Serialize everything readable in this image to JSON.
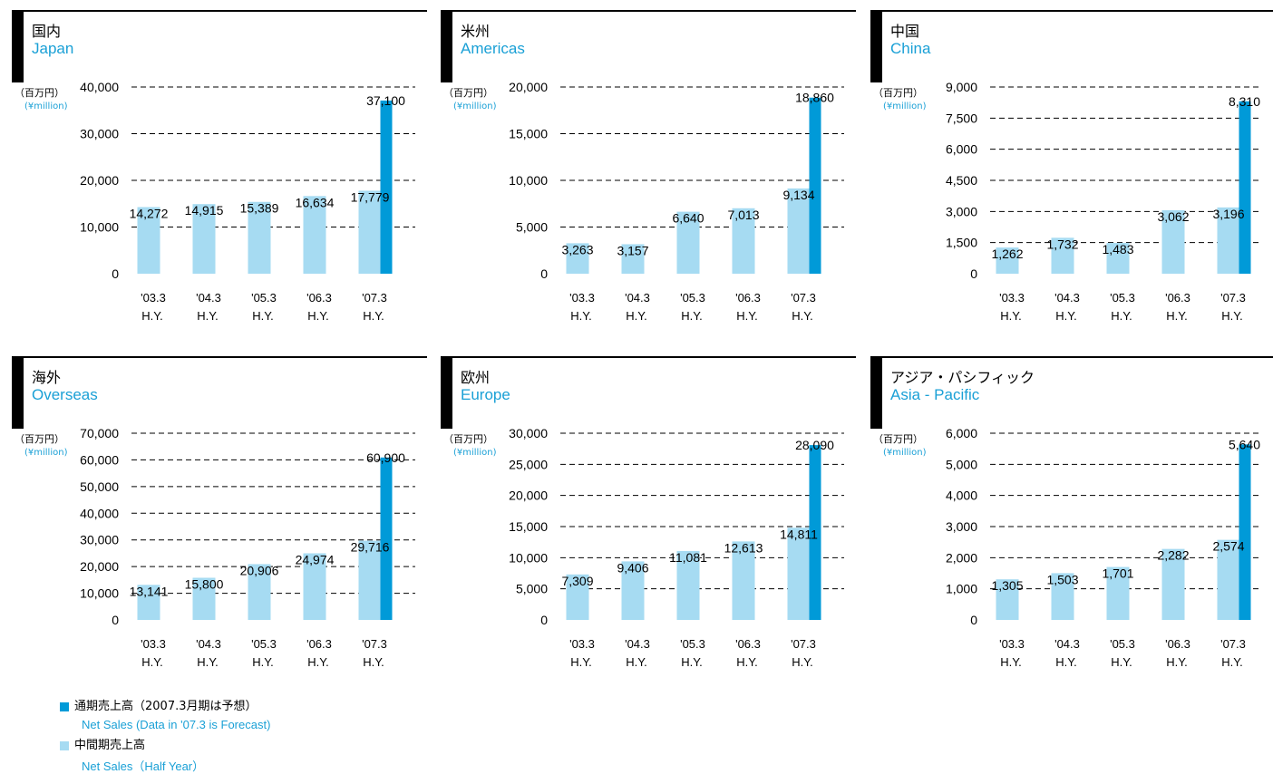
{
  "colors": {
    "full_year": "#009ad8",
    "half_year": "#a6dbf2",
    "english_text": "#1aa0d6",
    "grid": "#000000"
  },
  "unit": {
    "jp": "（百万円）",
    "en": "(¥million)"
  },
  "categories": [
    [
      "'03.3",
      "H.Y."
    ],
    [
      "'04.3",
      "H.Y."
    ],
    [
      "'05.3",
      "H.Y."
    ],
    [
      "'06.3",
      "H.Y."
    ],
    [
      "'07.3",
      "H.Y."
    ]
  ],
  "legend": {
    "full_year_jp": "通期売上高（2007.3月期は予想）",
    "full_year_en": "Net Sales (Data in '07.3 is Forecast)",
    "half_year_jp": "中間期売上高",
    "half_year_en": "Net Sales（Half Year）"
  },
  "panels": [
    {
      "title_jp": "国内",
      "title_en": "Japan"
    },
    {
      "title_jp": "米州",
      "title_en": "Americas"
    },
    {
      "title_jp": "中国",
      "title_en": "China"
    },
    {
      "title_jp": "海外",
      "title_en": "Overseas"
    },
    {
      "title_jp": "欧州",
      "title_en": "Europe"
    },
    {
      "title_jp": "アジア・パシフィック",
      "title_en": "Asia - Pacific"
    }
  ],
  "chart_data": [
    {
      "type": "bar",
      "title": "国内 Japan",
      "ylabel": "(百万円) (¥million)",
      "categories": [
        "'03.3 H.Y.",
        "'04.3 H.Y.",
        "'05.3 H.Y.",
        "'06.3 H.Y.",
        "'07.3 H.Y."
      ],
      "ylim": [
        0,
        40000
      ],
      "yticks": [
        0,
        10000,
        20000,
        30000,
        40000
      ],
      "ytick_labels": [
        "0",
        "10,000",
        "20,000",
        "30,000",
        "40,000"
      ],
      "series": [
        {
          "name": "中間期売上高 Net Sales（Half Year）",
          "values": [
            14272,
            14915,
            15389,
            16634,
            17779
          ],
          "labels": [
            "14,272",
            "14,915",
            "15,389",
            "16,634",
            "17,779"
          ]
        },
        {
          "name": "通期売上高（2007.3月期は予想） Net Sales (Data in '07.3 is Forecast)",
          "values": [
            null,
            null,
            null,
            null,
            37100
          ],
          "labels": [
            "",
            "",
            "",
            "",
            "37,100"
          ]
        }
      ]
    },
    {
      "type": "bar",
      "title": "米州 Americas",
      "ylabel": "(百万円) (¥million)",
      "categories": [
        "'03.3 H.Y.",
        "'04.3 H.Y.",
        "'05.3 H.Y.",
        "'06.3 H.Y.",
        "'07.3 H.Y."
      ],
      "ylim": [
        0,
        20000
      ],
      "yticks": [
        0,
        5000,
        10000,
        15000,
        20000
      ],
      "ytick_labels": [
        "0",
        "5,000",
        "10,000",
        "15,000",
        "20,000"
      ],
      "series": [
        {
          "name": "中間期売上高 Net Sales（Half Year）",
          "values": [
            3263,
            3157,
            6640,
            7013,
            9134
          ],
          "labels": [
            "3,263",
            "3,157",
            "6,640",
            "7,013",
            "9,134"
          ]
        },
        {
          "name": "通期売上高（2007.3月期は予想） Net Sales (Data in '07.3 is Forecast)",
          "values": [
            null,
            null,
            null,
            null,
            18860
          ],
          "labels": [
            "",
            "",
            "",
            "",
            "18,860"
          ]
        }
      ]
    },
    {
      "type": "bar",
      "title": "中国 China",
      "ylabel": "(百万円) (¥million)",
      "categories": [
        "'03.3 H.Y.",
        "'04.3 H.Y.",
        "'05.3 H.Y.",
        "'06.3 H.Y.",
        "'07.3 H.Y."
      ],
      "ylim": [
        0,
        9000
      ],
      "yticks": [
        0,
        1500,
        3000,
        4500,
        6000,
        7500,
        9000
      ],
      "ytick_labels": [
        "0",
        "1,500",
        "3,000",
        "4,500",
        "6,000",
        "7,500",
        "9,000"
      ],
      "series": [
        {
          "name": "中間期売上高 Net Sales（Half Year）",
          "values": [
            1262,
            1732,
            1483,
            3062,
            3196
          ],
          "labels": [
            "1,262",
            "1,732",
            "1,483",
            "3,062",
            "3,196"
          ]
        },
        {
          "name": "通期売上高（2007.3月期は予想） Net Sales (Data in '07.3 is Forecast)",
          "values": [
            null,
            null,
            null,
            null,
            8310
          ],
          "labels": [
            "",
            "",
            "",
            "",
            "8,310"
          ]
        }
      ]
    },
    {
      "type": "bar",
      "title": "海外 Overseas",
      "ylabel": "(百万円) (¥million)",
      "categories": [
        "'03.3 H.Y.",
        "'04.3 H.Y.",
        "'05.3 H.Y.",
        "'06.3 H.Y.",
        "'07.3 H.Y."
      ],
      "ylim": [
        0,
        70000
      ],
      "yticks": [
        0,
        10000,
        20000,
        30000,
        40000,
        50000,
        60000,
        70000
      ],
      "ytick_labels": [
        "0",
        "10,000",
        "20,000",
        "30,000",
        "40,000",
        "50,000",
        "60,000",
        "70,000"
      ],
      "series": [
        {
          "name": "中間期売上高 Net Sales（Half Year）",
          "values": [
            13141,
            15800,
            20906,
            24974,
            29716
          ],
          "labels": [
            "13,141",
            "15,800",
            "20,906",
            "24,974",
            "29,716"
          ]
        },
        {
          "name": "通期売上高（2007.3月期は予想） Net Sales (Data in '07.3 is Forecast)",
          "values": [
            null,
            null,
            null,
            null,
            60900
          ],
          "labels": [
            "",
            "",
            "",
            "",
            "60,900"
          ]
        }
      ]
    },
    {
      "type": "bar",
      "title": "欧州 Europe",
      "ylabel": "(百万円) (¥million)",
      "categories": [
        "'03.3 H.Y.",
        "'04.3 H.Y.",
        "'05.3 H.Y.",
        "'06.3 H.Y.",
        "'07.3 H.Y."
      ],
      "ylim": [
        0,
        30000
      ],
      "yticks": [
        0,
        5000,
        10000,
        15000,
        20000,
        25000,
        30000
      ],
      "ytick_labels": [
        "0",
        "5,000",
        "10,000",
        "15,000",
        "20,000",
        "25,000",
        "30,000"
      ],
      "series": [
        {
          "name": "中間期売上高 Net Sales（Half Year）",
          "values": [
            7309,
            9406,
            11081,
            12613,
            14811
          ],
          "labels": [
            "7,309",
            "9,406",
            "11,081",
            "12,613",
            "14,811"
          ]
        },
        {
          "name": "通期売上高（2007.3月期は予想） Net Sales (Data in '07.3 is Forecast)",
          "values": [
            null,
            null,
            null,
            null,
            28090
          ],
          "labels": [
            "",
            "",
            "",
            "",
            "28,090"
          ]
        }
      ]
    },
    {
      "type": "bar",
      "title": "アジア・パシフィック Asia - Pacific",
      "ylabel": "(百万円) (¥million)",
      "categories": [
        "'03.3 H.Y.",
        "'04.3 H.Y.",
        "'05.3 H.Y.",
        "'06.3 H.Y.",
        "'07.3 H.Y."
      ],
      "ylim": [
        0,
        6000
      ],
      "yticks": [
        0,
        1000,
        2000,
        3000,
        4000,
        5000,
        6000
      ],
      "ytick_labels": [
        "0",
        "1,000",
        "2,000",
        "3,000",
        "4,000",
        "5,000",
        "6,000"
      ],
      "series": [
        {
          "name": "中間期売上高 Net Sales（Half Year）",
          "values": [
            1305,
            1503,
            1701,
            2282,
            2574
          ],
          "labels": [
            "1,305",
            "1,503",
            "1,701",
            "2,282",
            "2,574"
          ]
        },
        {
          "name": "通期売上高（2007.3月期は予想） Net Sales (Data in '07.3 is Forecast)",
          "values": [
            null,
            null,
            null,
            null,
            5640
          ],
          "labels": [
            "",
            "",
            "",
            "",
            "5,640"
          ]
        }
      ]
    }
  ]
}
